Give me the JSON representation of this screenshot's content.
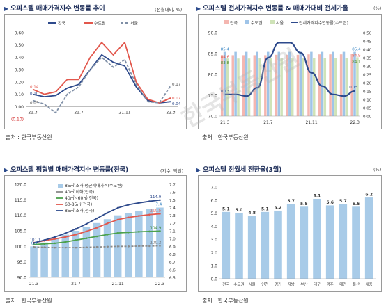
{
  "panels": [
    {
      "title": "오피스텔 매매가격지수 변동률 추이",
      "unit": "(전월대비, %)",
      "source": "출처 : 한국부동산원"
    },
    {
      "title": "오피스텔 전세가격지수 변동률 & 매매가대비 전세가율",
      "unit": "(%)",
      "source": "출처 : 한국부동산원"
    },
    {
      "title": "오피스텔 평형별 매매가격지수 변동률(전국)",
      "unit": "(지수, 억원)",
      "source": "출처 : 한국부동산원"
    },
    {
      "title": "오피스텔 전월세 전환율(3월)",
      "unit": "(%)",
      "source": "출처 : 한국부동산원"
    }
  ],
  "watermark": "한국부동산원",
  "chart_data": [
    {
      "type": "line",
      "x": [
        "21.3",
        "21.4",
        "21.5",
        "21.6",
        "21.7",
        "21.8",
        "21.9",
        "21.10",
        "21.11",
        "21.12",
        "22.1",
        "22.2",
        "22.3"
      ],
      "xticks": [
        "21.3",
        "21.7",
        "21.11",
        "22.3"
      ],
      "series": [
        {
          "name": "전국",
          "color": "#2e4a8c",
          "values": [
            0.1,
            0.08,
            0.09,
            0.15,
            0.18,
            0.3,
            0.42,
            0.36,
            0.33,
            0.16,
            0.05,
            0.03,
            0.04
          ]
        },
        {
          "name": "수도권",
          "color": "#e2574c",
          "values": [
            0.14,
            0.1,
            0.12,
            0.22,
            0.22,
            0.4,
            0.52,
            0.42,
            0.52,
            0.2,
            0.06,
            0.03,
            0.07
          ]
        },
        {
          "name": "서울",
          "color": "#7f8fa6",
          "values": [
            0.05,
            0.02,
            -0.05,
            0.1,
            0.16,
            0.3,
            0.4,
            0.32,
            0.38,
            0.18,
            0.04,
            0.03,
            0.17
          ]
        }
      ],
      "labels": {
        "left_blue": "0.10",
        "left_red": "0.14",
        "left_gray": "0.05",
        "right_gray": "0.17",
        "right_red": "0.07",
        "right_blue": "0.04",
        "bottom": "(0.10)"
      },
      "yticks": [
        "0.60",
        "0.50",
        "0.40",
        "0.30",
        "0.20",
        "0.10",
        "0.00",
        "(0.10)"
      ],
      "ylim": [
        -0.1,
        0.6
      ]
    },
    {
      "type": "bar",
      "x": [
        "21.3",
        "21.4",
        "21.5",
        "21.6",
        "21.7",
        "21.8",
        "21.9",
        "21.10",
        "21.11",
        "21.12",
        "22.1",
        "22.2",
        "22.3"
      ],
      "xticks": [
        "21.3",
        "21.7",
        "21.11",
        "22.3"
      ],
      "series": [
        {
          "name": "전국",
          "color": "#f4b6b0",
          "values": [
            84.6,
            84.6,
            84.6,
            84.6,
            84.6,
            84.7,
            84.7,
            84.7,
            84.8,
            84.8,
            84.8,
            84.8,
            84.9
          ]
        },
        {
          "name": "수도권",
          "color": "#9fc4e8",
          "values": [
            85.4,
            85.4,
            85.4,
            85.4,
            85.4,
            85.4,
            85.4,
            85.4,
            85.4,
            85.4,
            85.4,
            85.4,
            85.4
          ]
        },
        {
          "name": "서울",
          "color": "#cfe3b8",
          "values": [
            83.8,
            83.8,
            83.8,
            83.9,
            83.9,
            83.9,
            84.0,
            84.0,
            84.0,
            84.0,
            84.0,
            84.0,
            84.1
          ]
        }
      ],
      "line": {
        "name": "전세가격지수변동률(수도권)",
        "color": "#2e4a8c",
        "values": [
          0.13,
          0.13,
          0.12,
          0.17,
          0.35,
          0.44,
          0.44,
          0.38,
          0.26,
          0.18,
          0.13,
          0.12,
          0.15
        ]
      },
      "labels": {
        "b1": "85.4",
        "b2": "84.6",
        "b3": "83.8",
        "r1": "85.4",
        "r2": "84.9",
        "r3": "84.1",
        "l1": "0.13",
        "l2": "0.15"
      },
      "yticks_left": [
        "90.0",
        "85.0",
        "80.0",
        "75.0",
        "70.0"
      ],
      "yticks_right": [
        "0.50",
        "0.45",
        "0.40",
        "0.35",
        "0.30",
        "0.25",
        "0.20",
        "0.15",
        "0.10",
        "0.05",
        "0.00"
      ],
      "ylim_left": [
        70,
        90
      ],
      "ylim_right": [
        0,
        0.5
      ]
    },
    {
      "type": "bar",
      "x": [
        "21.3",
        "21.4",
        "21.5",
        "21.6",
        "21.7",
        "21.8",
        "21.9",
        "21.10",
        "21.11",
        "21.12",
        "22.1",
        "22.2",
        "22.3"
      ],
      "xticks": [
        "21.3",
        "21.7",
        "21.11",
        "22.3"
      ],
      "bars": {
        "name": "85㎡ 초과 평균매매가격(수도권)",
        "color": "#a8cbe8",
        "values": [
          6.9,
          6.95,
          7.0,
          7.05,
          7.1,
          7.15,
          7.2,
          7.25,
          7.3,
          7.33,
          7.36,
          7.38,
          7.4
        ]
      },
      "series": [
        {
          "name": "40㎡ 이하(전국)",
          "color": "#8a8a8a",
          "values": [
            99.8,
            99.7,
            99.6,
            99.6,
            99.6,
            99.7,
            99.8,
            99.9,
            100.0,
            100.0,
            100.1,
            100.1,
            100.2
          ]
        },
        {
          "name": "40㎡~60㎡(전국)",
          "color": "#4ca14c",
          "values": [
            100.6,
            100.8,
            101.0,
            101.4,
            102.0,
            102.6,
            103.2,
            103.8,
            104.3,
            104.5,
            104.7,
            104.8,
            104.9
          ]
        },
        {
          "name": "60-85㎡(전국)",
          "color": "#e2574c",
          "values": [
            101.2,
            101.8,
            102.4,
            103.0,
            103.8,
            104.8,
            106.0,
            107.4,
            108.6,
            109.3,
            109.8,
            110.2,
            110.5
          ]
        },
        {
          "name": "85㎡ 초과(전국)",
          "color": "#2e4a8c",
          "values": [
            101.1,
            102.0,
            103.0,
            104.2,
            105.6,
            107.2,
            109.0,
            110.8,
            112.4,
            113.4,
            114.0,
            114.5,
            114.9
          ]
        }
      ],
      "labels": {
        "l1": "101.1",
        "l2": "6.9",
        "r1": "7.4",
        "r2": "114.9",
        "r3": "110.5",
        "r4": "104.9",
        "r5": "100.2"
      },
      "yticks_left": [
        "120.0",
        "115.0",
        "110.0",
        "105.0",
        "100.0",
        "95.0",
        "90.0"
      ],
      "yticks_right": [
        "7.7",
        "7.6",
        "7.5",
        "7.4",
        "7.3",
        "7.2",
        "7.1",
        "7.0",
        "6.9",
        "6.8",
        "6.7",
        "6.6",
        "6.5"
      ],
      "ylim_left": [
        90,
        120
      ],
      "ylim_right": [
        6.5,
        7.7
      ]
    },
    {
      "type": "bar",
      "categories": [
        "전국",
        "수도권",
        "서울",
        "인천",
        "경기",
        "지방",
        "부산",
        "대구",
        "광주",
        "대전",
        "울산",
        "세종"
      ],
      "values": [
        5.1,
        5.0,
        4.8,
        5.1,
        5.2,
        5.7,
        5.5,
        6.1,
        5.6,
        5.7,
        5.5,
        6.2
      ],
      "value_labels": [
        "5.1",
        "5.0",
        "4.8",
        "5.1",
        "5.2",
        "5.7",
        "5.5",
        "6.1",
        "5.6",
        "5.7",
        "5.5",
        "6.2"
      ],
      "color": "#a8cbe8",
      "yticks": [
        "7.0",
        "6.0",
        "5.0",
        "4.0",
        "3.0",
        "2.0",
        "1.0",
        "0.0"
      ],
      "ylim": [
        0,
        7
      ]
    }
  ]
}
